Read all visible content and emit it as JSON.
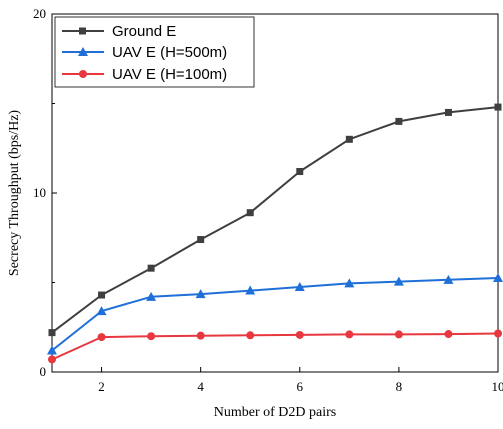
{
  "chart_data": {
    "type": "line",
    "title": "",
    "xlabel": "Number of D2D pairs",
    "ylabel": "Secrecy Throughput (bps/Hz)",
    "xlim": [
      1,
      10
    ],
    "ylim": [
      0,
      20
    ],
    "xticks": [
      2,
      4,
      6,
      8,
      10
    ],
    "yticks": [
      0,
      10,
      20
    ],
    "grid": false,
    "legend_position": "top-left",
    "x": [
      1,
      2,
      3,
      4,
      5,
      6,
      7,
      8,
      9,
      10
    ],
    "series": [
      {
        "name": "Ground E",
        "marker": "square",
        "color": "#3f3f3f",
        "values": [
          2.2,
          4.3,
          5.8,
          7.4,
          8.9,
          11.2,
          13.0,
          14.0,
          14.5,
          14.8
        ]
      },
      {
        "name": "UAV E (H=500m)",
        "marker": "triangle",
        "color": "#1f6fd8",
        "values": [
          1.2,
          3.4,
          4.2,
          4.35,
          4.55,
          4.75,
          4.95,
          5.05,
          5.15,
          5.25
        ]
      },
      {
        "name": "UAV E (H=100m)",
        "marker": "circle",
        "color": "#e8373f",
        "values": [
          0.7,
          1.95,
          2.0,
          2.03,
          2.05,
          2.07,
          2.1,
          2.1,
          2.12,
          2.15
        ]
      }
    ]
  }
}
